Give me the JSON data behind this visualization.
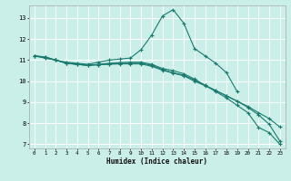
{
  "xlabel": "Humidex (Indice chaleur)",
  "xlim": [
    -0.5,
    23.5
  ],
  "ylim": [
    6.8,
    13.6
  ],
  "yticks": [
    7,
    8,
    9,
    10,
    11,
    12,
    13
  ],
  "xticks": [
    0,
    1,
    2,
    3,
    4,
    5,
    6,
    7,
    8,
    9,
    10,
    11,
    12,
    13,
    14,
    15,
    16,
    17,
    18,
    19,
    20,
    21,
    22,
    23
  ],
  "bg_color": "#caeee8",
  "line_color": "#1a7a6e",
  "grid_color": "#ffffff",
  "lines": [
    [
      11.2,
      11.15,
      11.0,
      10.9,
      10.85,
      10.8,
      10.9,
      11.0,
      11.05,
      11.1,
      11.5,
      12.2,
      13.1,
      13.4,
      12.75,
      11.55,
      11.2,
      10.85,
      10.4,
      9.5,
      null,
      null,
      null,
      null
    ],
    [
      11.2,
      11.15,
      11.0,
      10.85,
      10.8,
      10.75,
      10.8,
      10.85,
      10.88,
      10.9,
      10.9,
      10.8,
      10.6,
      10.5,
      10.35,
      10.1,
      9.8,
      9.5,
      9.2,
      8.85,
      8.5,
      7.8,
      7.55,
      7.0
    ],
    [
      11.2,
      11.1,
      11.0,
      10.85,
      10.8,
      10.75,
      10.78,
      10.82,
      10.85,
      10.85,
      10.85,
      10.75,
      10.55,
      10.4,
      10.28,
      10.05,
      9.8,
      9.55,
      9.3,
      9.05,
      8.75,
      8.4,
      7.95,
      7.15
    ],
    [
      11.2,
      11.1,
      11.0,
      10.85,
      10.8,
      10.75,
      10.78,
      10.8,
      10.82,
      10.82,
      10.82,
      10.7,
      10.52,
      10.38,
      10.25,
      10.0,
      9.78,
      9.55,
      9.3,
      9.05,
      8.8,
      8.5,
      8.22,
      7.82
    ]
  ]
}
